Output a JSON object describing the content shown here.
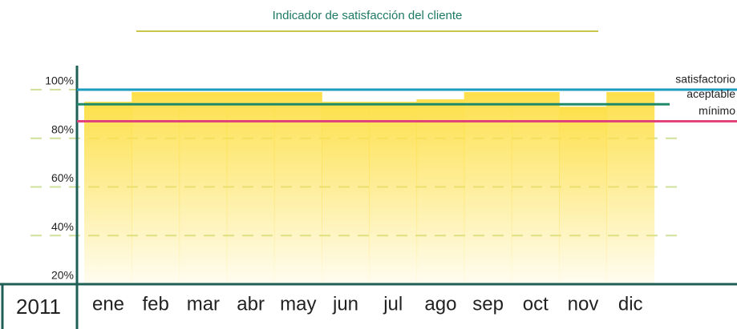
{
  "chart_data": {
    "type": "bar",
    "title": "Indicador de satisfacción del cliente",
    "year": "2011",
    "categories": [
      "ene",
      "feb",
      "mar",
      "abr",
      "may",
      "jun",
      "jul",
      "ago",
      "sep",
      "oct",
      "nov",
      "dic"
    ],
    "values": [
      95,
      99,
      99,
      99,
      99,
      95,
      95,
      96,
      99,
      99,
      93,
      99
    ],
    "color": "#fde04a",
    "ylim": [
      20,
      110
    ],
    "yticks": [
      {
        "value": 20,
        "label": "20%"
      },
      {
        "value": 40,
        "label": "40%"
      },
      {
        "value": 60,
        "label": "60%"
      },
      {
        "value": 80,
        "label": "80%"
      },
      {
        "value": 100,
        "label": "100%"
      }
    ],
    "grid": true,
    "reference_lines": [
      {
        "name": "satisfactorio",
        "value": 100,
        "color": "#1a9bbf"
      },
      {
        "name": "aceptable",
        "value": 94,
        "color": "#1e8a6a"
      },
      {
        "name": "mínimo",
        "value": 87,
        "color": "#e0447a"
      }
    ]
  }
}
